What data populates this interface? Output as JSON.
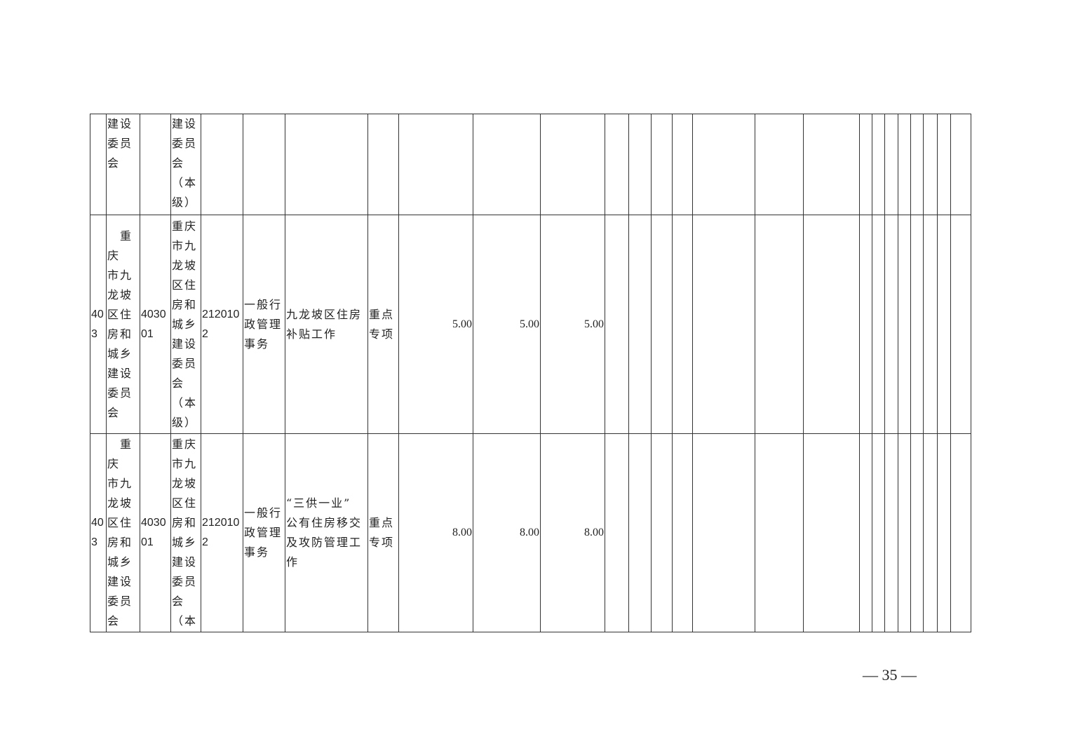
{
  "rows": [
    {
      "c": [
        "",
        "建设\n委员\n会",
        "",
        "建设\n委员\n会\n（本\n级）",
        "",
        "",
        "",
        "",
        "",
        "",
        ""
      ]
    },
    {
      "c": [
        "40\n3",
        "　重庆\n市九\n龙坡\n区住\n房和\n城乡\n建设\n委员\n会",
        "4030\n01",
        "重庆\n市九\n龙坡\n区住\n房和\n城乡\n建设\n委员\n会\n（本\n级）",
        "212010\n2",
        "一般行\n政管理\n事务",
        "九龙坡区住房\n补贴工作",
        "重点\n专项",
        "5.00",
        "5.00",
        "5.00"
      ]
    },
    {
      "c": [
        "40\n3",
        "　重庆\n市九\n龙坡\n区住\n房和\n城乡\n建设\n委员\n会",
        "4030\n01",
        "重庆\n市九\n龙坡\n区住\n房和\n城乡\n建设\n委员\n会\n（本",
        "212010\n2",
        "一般行\n政管理\n事务",
        "“三供一业”\n公有住房移交\n及攻防管理工\n作",
        "重点\n专项",
        "8.00",
        "8.00",
        "8.00"
      ]
    }
  ],
  "page_number": "— 35 —"
}
